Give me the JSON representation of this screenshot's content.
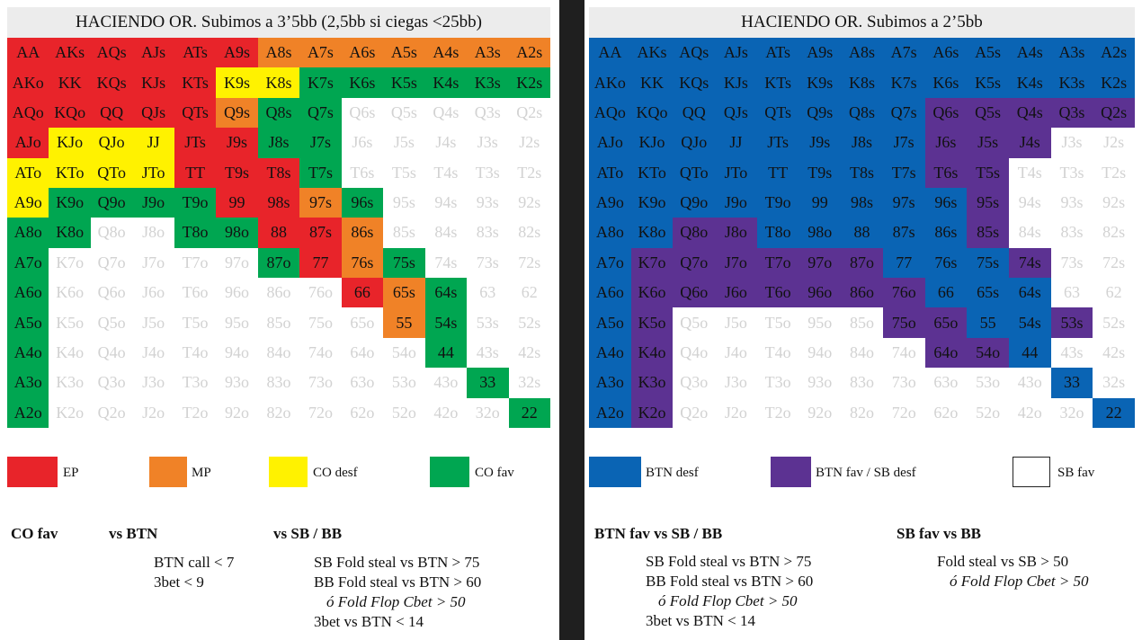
{
  "colors": {
    "EP": "#e8242a",
    "MP": "#f08227",
    "COD": "#fff200",
    "COF": "#00a651",
    "BD": "#0a64b4",
    "BF": "#5c3292",
    "SF": "#ffffff",
    "fold": "#ffffff"
  },
  "left": {
    "title": "HACIENDO OR. Subimos a 3’5bb (2,5bb si ciegas <25bb)",
    "rows": [
      [
        "AA",
        "AKs",
        "AQs",
        "AJs",
        "ATs",
        "A9s",
        "A8s",
        "A7s",
        "A6s",
        "A5s",
        "A4s",
        "A3s",
        "A2s"
      ],
      [
        "AKo",
        "KK",
        "KQs",
        "KJs",
        "KTs",
        "K9s",
        "K8s",
        "K7s",
        "K6s",
        "K5s",
        "K4s",
        "K3s",
        "K2s"
      ],
      [
        "AQo",
        "KQo",
        "QQ",
        "QJs",
        "QTs",
        "Q9s",
        "Q8s",
        "Q7s",
        "Q6s",
        "Q5s",
        "Q4s",
        "Q3s",
        "Q2s"
      ],
      [
        "AJo",
        "KJo",
        "QJo",
        "JJ",
        "JTs",
        "J9s",
        "J8s",
        "J7s",
        "J6s",
        "J5s",
        "J4s",
        "J3s",
        "J2s"
      ],
      [
        "ATo",
        "KTo",
        "QTo",
        "JTo",
        "TT",
        "T9s",
        "T8s",
        "T7s",
        "T6s",
        "T5s",
        "T4s",
        "T3s",
        "T2s"
      ],
      [
        "A9o",
        "K9o",
        "Q9o",
        "J9o",
        "T9o",
        "99",
        "98s",
        "97s",
        "96s",
        "95s",
        "94s",
        "93s",
        "92s"
      ],
      [
        "A8o",
        "K8o",
        "Q8o",
        "J8o",
        "T8o",
        "98o",
        "88",
        "87s",
        "86s",
        "85s",
        "84s",
        "83s",
        "82s"
      ],
      [
        "A7o",
        "K7o",
        "Q7o",
        "J7o",
        "T7o",
        "97o",
        "87o",
        "77",
        "76s",
        "75s",
        "74s",
        "73s",
        "72s"
      ],
      [
        "A6o",
        "K6o",
        "Q6o",
        "J6o",
        "T6o",
        "96o",
        "86o",
        "76o",
        "66",
        "65s",
        "64s",
        "63",
        "62"
      ],
      [
        "A5o",
        "K5o",
        "Q5o",
        "J5o",
        "T5o",
        "95o",
        "85o",
        "75o",
        "65o",
        "55",
        "54s",
        "53s",
        "52s"
      ],
      [
        "A4o",
        "K4o",
        "Q4o",
        "J4o",
        "T4o",
        "94o",
        "84o",
        "74o",
        "64o",
        "54o",
        "44",
        "43s",
        "42s"
      ],
      [
        "A3o",
        "K3o",
        "Q3o",
        "J3o",
        "T3o",
        "93o",
        "83o",
        "73o",
        "63o",
        "53o",
        "43o",
        "33",
        "32s"
      ],
      [
        "A2o",
        "K2o",
        "Q2o",
        "J2o",
        "T2o",
        "92o",
        "82o",
        "72o",
        "62o",
        "52o",
        "42o",
        "32o",
        "22"
      ]
    ],
    "ranges": [
      [
        "EP",
        "EP",
        "EP",
        "EP",
        "EP",
        "EP",
        "MP",
        "MP",
        "MP",
        "MP",
        "MP",
        "MP",
        "MP"
      ],
      [
        "EP",
        "EP",
        "EP",
        "EP",
        "EP",
        "COD",
        "COD",
        "COF",
        "COF",
        "COF",
        "COF",
        "COF",
        "COF"
      ],
      [
        "EP",
        "EP",
        "EP",
        "EP",
        "EP",
        "MP",
        "COF",
        "COF",
        "F",
        "F",
        "F",
        "F",
        "F"
      ],
      [
        "EP",
        "COD",
        "COD",
        "COD",
        "EP",
        "EP",
        "COF",
        "COF",
        "F",
        "F",
        "F",
        "F",
        "F"
      ],
      [
        "COD",
        "COD",
        "COD",
        "COD",
        "EP",
        "EP",
        "EP",
        "COF",
        "F",
        "F",
        "F",
        "F",
        "F"
      ],
      [
        "COD",
        "COF",
        "COF",
        "COF",
        "COF",
        "EP",
        "EP",
        "MP",
        "COF",
        "F",
        "F",
        "F",
        "F"
      ],
      [
        "COF",
        "COF",
        "F",
        "F",
        "COF",
        "COF",
        "EP",
        "EP",
        "MP",
        "F",
        "F",
        "F",
        "F"
      ],
      [
        "COF",
        "F",
        "F",
        "F",
        "F",
        "F",
        "COF",
        "EP",
        "MP",
        "COF",
        "F",
        "F",
        "F"
      ],
      [
        "COF",
        "F",
        "F",
        "F",
        "F",
        "F",
        "F",
        "F",
        "EP",
        "MP",
        "COF",
        "F",
        "F"
      ],
      [
        "COF",
        "F",
        "F",
        "F",
        "F",
        "F",
        "F",
        "F",
        "F",
        "MP",
        "COF",
        "F",
        "F"
      ],
      [
        "COF",
        "F",
        "F",
        "F",
        "F",
        "F",
        "F",
        "F",
        "F",
        "F",
        "COF",
        "F",
        "F"
      ],
      [
        "COF",
        "F",
        "F",
        "F",
        "F",
        "F",
        "F",
        "F",
        "F",
        "F",
        "F",
        "COF",
        "F"
      ],
      [
        "COF",
        "F",
        "F",
        "F",
        "F",
        "F",
        "F",
        "F",
        "F",
        "F",
        "F",
        "F",
        "COF"
      ]
    ],
    "legend": [
      {
        "key": "EP",
        "label": "EP"
      },
      {
        "key": "MP",
        "label": "MP"
      },
      {
        "key": "COD",
        "label": "CO desf"
      },
      {
        "key": "COF",
        "label": "CO fav"
      }
    ],
    "headings": {
      "a": "CO fav",
      "b": "vs BTN",
      "c": "vs SB / BB"
    },
    "notes_btn": [
      "BTN call < 7",
      "3bet < 9"
    ],
    "notes_blinds": [
      "SB Fold steal vs BTN > 75",
      "BB Fold steal vs BTN > 60",
      "ó Fold Flop Cbet > 50",
      "3bet vs BTN < 14"
    ]
  },
  "right": {
    "title": "HACIENDO OR. Subimos a 2’5bb",
    "ranges": [
      [
        "BD",
        "BD",
        "BD",
        "BD",
        "BD",
        "BD",
        "BD",
        "BD",
        "BD",
        "BD",
        "BD",
        "BD",
        "BD"
      ],
      [
        "BD",
        "BD",
        "BD",
        "BD",
        "BD",
        "BD",
        "BD",
        "BD",
        "BD",
        "BD",
        "BD",
        "BD",
        "BD"
      ],
      [
        "BD",
        "BD",
        "BD",
        "BD",
        "BD",
        "BD",
        "BD",
        "BD",
        "BF",
        "BF",
        "BF",
        "BF",
        "BF"
      ],
      [
        "BD",
        "BD",
        "BD",
        "BD",
        "BD",
        "BD",
        "BD",
        "BD",
        "BF",
        "BF",
        "BF",
        "F",
        "F"
      ],
      [
        "BD",
        "BD",
        "BD",
        "BD",
        "BD",
        "BD",
        "BD",
        "BD",
        "BF",
        "BF",
        "F",
        "F",
        "F"
      ],
      [
        "BD",
        "BD",
        "BD",
        "BD",
        "BD",
        "BD",
        "BD",
        "BD",
        "BD",
        "BF",
        "F",
        "F",
        "F"
      ],
      [
        "BD",
        "BD",
        "BF",
        "BF",
        "BD",
        "BD",
        "BD",
        "BD",
        "BD",
        "BF",
        "F",
        "F",
        "F"
      ],
      [
        "BD",
        "BF",
        "BF",
        "BF",
        "BF",
        "BF",
        "BF",
        "BD",
        "BD",
        "BD",
        "BF",
        "F",
        "F"
      ],
      [
        "BD",
        "BF",
        "BF",
        "BF",
        "BF",
        "BF",
        "BF",
        "BF",
        "BD",
        "BD",
        "BD",
        "F",
        "F"
      ],
      [
        "BD",
        "BF",
        "F",
        "F",
        "F",
        "F",
        "F",
        "BF",
        "BF",
        "BD",
        "BD",
        "BF",
        "F"
      ],
      [
        "BD",
        "BF",
        "F",
        "F",
        "F",
        "F",
        "F",
        "F",
        "BF",
        "BF",
        "BD",
        "F",
        "F"
      ],
      [
        "BD",
        "BF",
        "F",
        "F",
        "F",
        "F",
        "F",
        "F",
        "F",
        "F",
        "F",
        "BD",
        "F"
      ],
      [
        "BD",
        "BF",
        "F",
        "F",
        "F",
        "F",
        "F",
        "F",
        "F",
        "F",
        "F",
        "F",
        "BD"
      ]
    ],
    "legend": [
      {
        "key": "BD",
        "label": "BTN desf"
      },
      {
        "key": "BF",
        "label": "BTN fav / SB desf"
      },
      {
        "key": "SF",
        "label": "SB fav"
      }
    ],
    "headings": {
      "a": "BTN fav vs SB / BB",
      "b": "SB fav vs BB"
    },
    "notes_btn": [
      "SB Fold steal vs BTN > 75",
      "BB Fold steal vs BTN > 60",
      "ó Fold Flop Cbet > 50",
      "3bet vs BTN < 14"
    ],
    "notes_sb": [
      "Fold steal vs SB > 50",
      "ó Fold Flop Cbet > 50"
    ]
  }
}
